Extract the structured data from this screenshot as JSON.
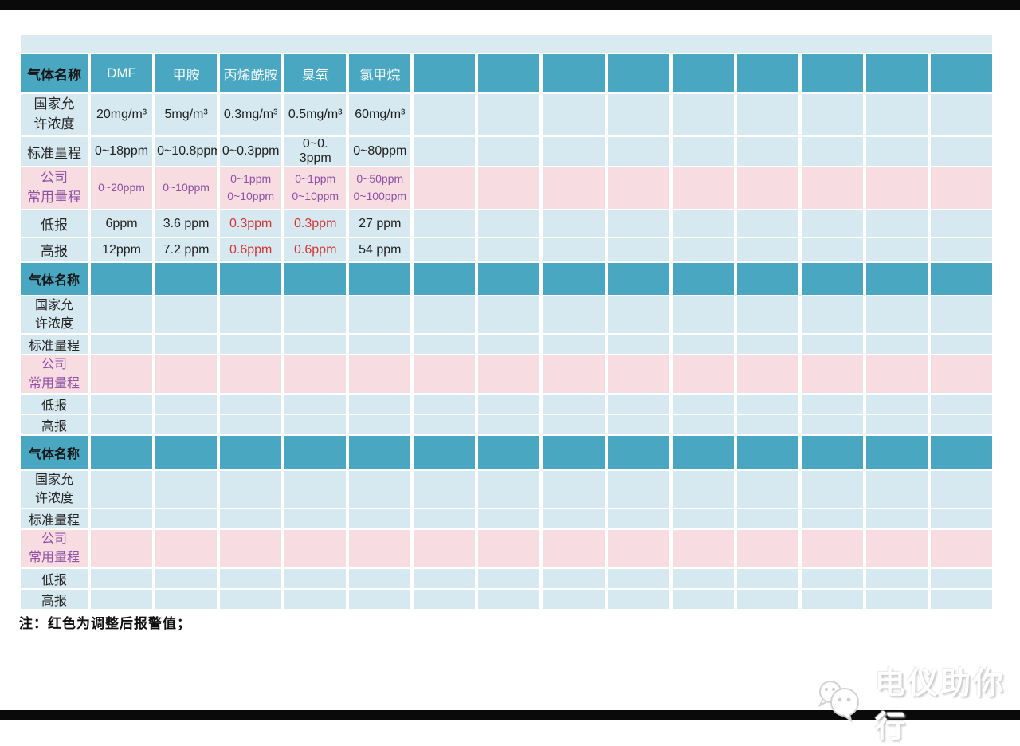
{
  "colors": {
    "header_teal": "#4aa7c2",
    "cell_blue": "#d7e9f0",
    "row_pink": "#f7dce1",
    "company_purple": "#9150a4",
    "alarm_red": "#d63333"
  },
  "row_labels": {
    "gas": "气体名称",
    "national": [
      "国家允",
      "许浓度"
    ],
    "standard": "标准量程",
    "company": [
      "公司",
      "常用量程"
    ],
    "low": "低报",
    "high": "高报"
  },
  "sections": [
    {
      "gases": [
        "DMF",
        "甲胺",
        "丙烯酰胺",
        "臭氧",
        "氯甲烷",
        "",
        "",
        "",
        "",
        "",
        "",
        "",
        "",
        ""
      ],
      "national": [
        "20mg/m³",
        "5mg/m³",
        "0.3mg/m³",
        "0.5mg/m³",
        "60mg/m³",
        "",
        "",
        "",
        "",
        "",
        "",
        "",
        "",
        ""
      ],
      "standard": [
        "0~18ppm",
        "0~10.8ppm",
        "0~0.3ppm",
        "0~0. 3ppm",
        "0~80ppm",
        "",
        "",
        "",
        "",
        "",
        "",
        "",
        "",
        ""
      ],
      "company": [
        [
          "0~20ppm"
        ],
        [
          "0~10ppm"
        ],
        [
          "0~1ppm",
          "0~10ppm"
        ],
        [
          "0~1ppm",
          "0~10ppm"
        ],
        [
          "0~50ppm",
          "0~100ppm"
        ],
        "",
        "",
        "",
        "",
        "",
        "",
        "",
        "",
        ""
      ],
      "low": [
        "6ppm",
        "3.6 ppm",
        "0.3ppm",
        "0.3ppm",
        "27 ppm",
        "",
        "",
        "",
        "",
        "",
        "",
        "",
        "",
        ""
      ],
      "low_red_cols": [
        2,
        3
      ],
      "high": [
        "12ppm",
        "7.2 ppm",
        "0.6ppm",
        "0.6ppm",
        "54 ppm",
        "",
        "",
        "",
        "",
        "",
        "",
        "",
        "",
        ""
      ],
      "high_red_cols": [
        2,
        3
      ]
    },
    {
      "gases": [
        "",
        "",
        "",
        "",
        "",
        "",
        "",
        "",
        "",
        "",
        "",
        "",
        "",
        ""
      ],
      "national": [
        "",
        "",
        "",
        "",
        "",
        "",
        "",
        "",
        "",
        "",
        "",
        "",
        "",
        ""
      ],
      "standard": [
        "",
        "",
        "",
        "",
        "",
        "",
        "",
        "",
        "",
        "",
        "",
        "",
        "",
        ""
      ],
      "company": [
        "",
        "",
        "",
        "",
        "",
        "",
        "",
        "",
        "",
        "",
        "",
        "",
        "",
        ""
      ],
      "low": [
        "",
        "",
        "",
        "",
        "",
        "",
        "",
        "",
        "",
        "",
        "",
        "",
        "",
        ""
      ],
      "low_red_cols": [],
      "high": [
        "",
        "",
        "",
        "",
        "",
        "",
        "",
        "",
        "",
        "",
        "",
        "",
        "",
        ""
      ],
      "high_red_cols": []
    },
    {
      "gases": [
        "",
        "",
        "",
        "",
        "",
        "",
        "",
        "",
        "",
        "",
        "",
        "",
        "",
        ""
      ],
      "national": [
        "",
        "",
        "",
        "",
        "",
        "",
        "",
        "",
        "",
        "",
        "",
        "",
        "",
        ""
      ],
      "standard": [
        "",
        "",
        "",
        "",
        "",
        "",
        "",
        "",
        "",
        "",
        "",
        "",
        "",
        ""
      ],
      "company": [
        "",
        "",
        "",
        "",
        "",
        "",
        "",
        "",
        "",
        "",
        "",
        "",
        "",
        ""
      ],
      "low": [
        "",
        "",
        "",
        "",
        "",
        "",
        "",
        "",
        "",
        "",
        "",
        "",
        "",
        ""
      ],
      "low_red_cols": [],
      "high": [
        "",
        "",
        "",
        "",
        "",
        "",
        "",
        "",
        "",
        "",
        "",
        "",
        "",
        ""
      ],
      "high_red_cols": []
    }
  ],
  "note": "注：红色为调整后报警值；",
  "watermark": {
    "text": "电仪助你行",
    "icon": "wechat-icon"
  }
}
